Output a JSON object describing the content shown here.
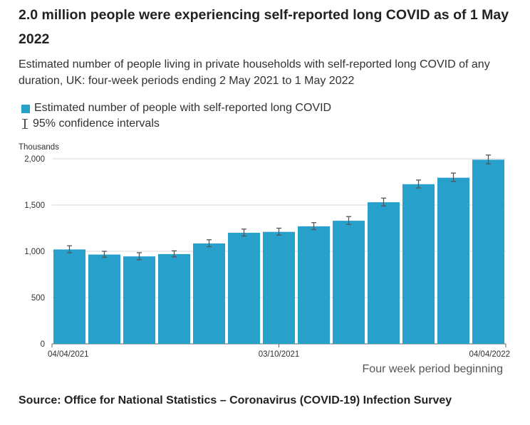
{
  "header": {
    "title": "2.0 million people were experiencing self-reported long COVID as of 1 May 2022",
    "subtitle": "Estimated number of people living in private households with self-reported long COVID of any duration, UK: four-week periods ending 2 May 2021 to 1 May 2022"
  },
  "legend": {
    "series_label": "Estimated number of people with self-reported long COVID",
    "ci_label": "95% confidence intervals"
  },
  "colors": {
    "bar": "#27a0cc",
    "grid": "#d9d9d9",
    "axis": "#666666",
    "errorbar": "#555555"
  },
  "chart_data": {
    "type": "bar",
    "title": "2.0 million people were experiencing self-reported long COVID as of 1 May 2022",
    "ylabel": "Thousands",
    "xlabel": "Four week period beginning",
    "ylim": [
      0,
      2000
    ],
    "yticks": [
      0,
      500,
      1000,
      1500,
      2000
    ],
    "ytick_labels": [
      "0",
      "500",
      "1,000",
      "1,500",
      "2,000"
    ],
    "xtick_labels": [
      {
        "index": 0,
        "label": "04/04/2021"
      },
      {
        "index": 6,
        "label": "03/10/2021"
      },
      {
        "index": 12,
        "label": "04/04/2022"
      }
    ],
    "grid": true,
    "legend_position": "top-left",
    "series": [
      {
        "name": "Estimated number of people with self-reported long COVID",
        "values": [
          1020,
          965,
          945,
          970,
          1085,
          1200,
          1210,
          1270,
          1330,
          1530,
          1725,
          1795,
          1990
        ],
        "ci_lower": [
          985,
          935,
          910,
          940,
          1050,
          1165,
          1175,
          1235,
          1290,
          1490,
          1685,
          1755,
          1945
        ],
        "ci_upper": [
          1060,
          1000,
          985,
          1005,
          1125,
          1240,
          1250,
          1310,
          1375,
          1575,
          1770,
          1845,
          2040
        ]
      }
    ]
  },
  "source": "Source: Office for National Statistics – Coronavirus (COVID-19) Infection Survey"
}
